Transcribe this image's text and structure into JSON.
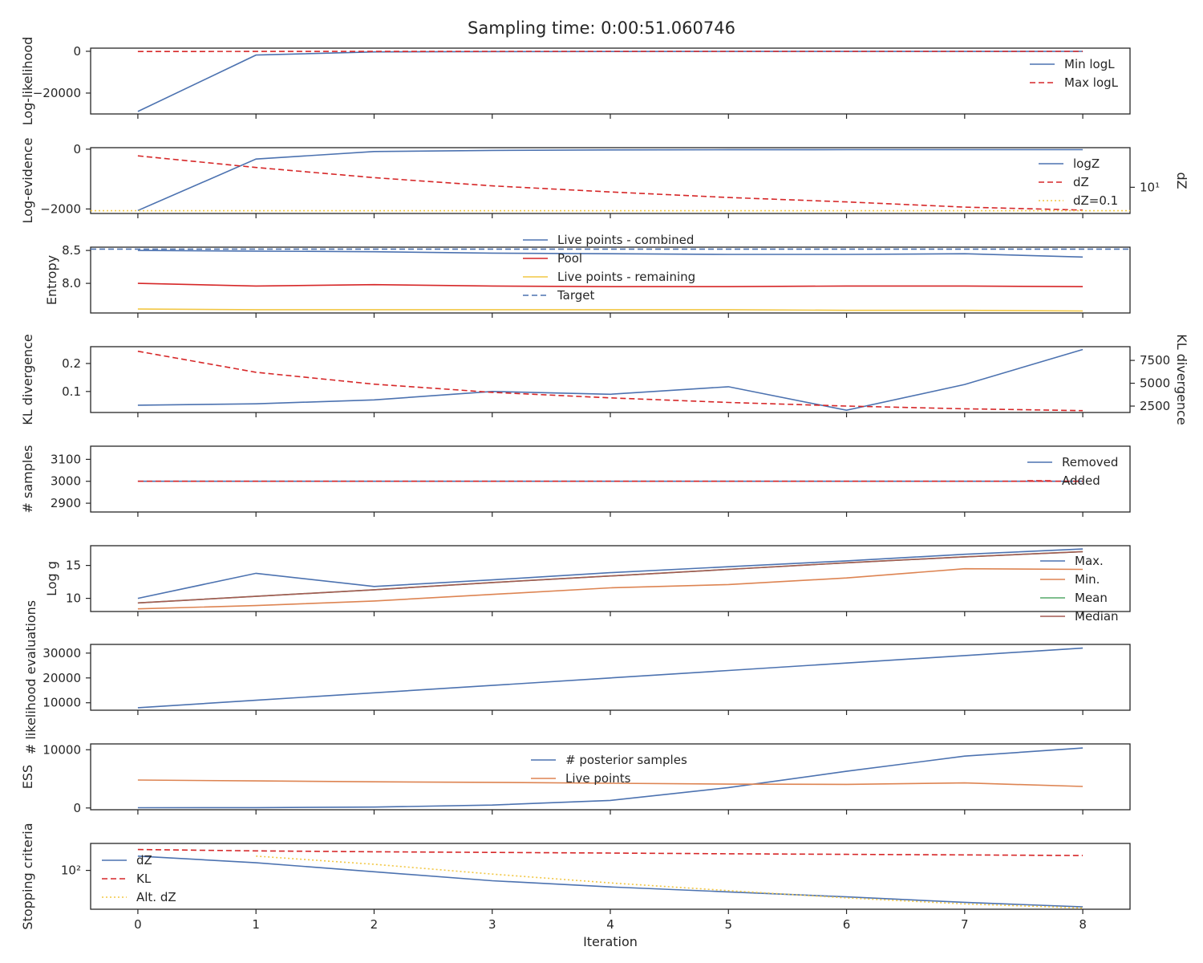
{
  "title": "Sampling time: 0:00:51.060746",
  "xlabel": "Iteration",
  "x": [
    0,
    1,
    2,
    3,
    4,
    5,
    6,
    7,
    8
  ],
  "x_ticks": [
    "0",
    "1",
    "2",
    "3",
    "4",
    "5",
    "6",
    "7",
    "8"
  ],
  "colors": {
    "blue": "#4c72b0",
    "orange": "#dd8452",
    "green": "#55a868",
    "red": "#d62728",
    "brown": "#a45a52",
    "yellow": "#f2c744"
  },
  "chart_data": [
    {
      "type": "line",
      "ylabel": "Log-likelihood",
      "ylim": [
        -30000,
        1500
      ],
      "yticks": [
        {
          "v": 0,
          "label": "0"
        },
        {
          "v": -20000,
          "label": "−20000"
        }
      ],
      "legend": "right",
      "series": [
        {
          "name": "Min logL",
          "color": "#4c72b0",
          "style": "solid",
          "values": [
            -28800,
            -1800,
            -300,
            -150,
            -100,
            -80,
            -70,
            -60,
            -50
          ]
        },
        {
          "name": "Max logL",
          "color": "#d62728",
          "style": "dashed",
          "values": [
            -100,
            -80,
            -60,
            -50,
            -45,
            -40,
            -35,
            -30,
            -30
          ]
        }
      ]
    },
    {
      "type": "line",
      "ylabel": "Log-evidence",
      "ylim": [
        -2150,
        50
      ],
      "yticks": [
        {
          "v": 0,
          "label": "0"
        },
        {
          "v": -2000,
          "label": "−2000"
        }
      ],
      "y2label": "dZ",
      "y2scale": "log",
      "y2ticks": [
        {
          "v": 10,
          "label": "10¹"
        }
      ],
      "legend": "right",
      "series": [
        {
          "name": "logZ",
          "color": "#4c72b0",
          "style": "solid",
          "axis": "left",
          "values": [
            -2050,
            -330,
            -80,
            -40,
            -25,
            -20,
            -18,
            -17,
            -17
          ]
        },
        {
          "name": "dZ",
          "color": "#d62728",
          "style": "dashed",
          "axis": "right",
          "values": [
            30,
            20,
            14,
            10.5,
            8.5,
            7,
            6,
            5,
            4.5
          ]
        },
        {
          "name": "dZ=0.1",
          "color": "#f2c744",
          "style": "dotted",
          "axis": "right",
          "hline": true,
          "values": [
            4.4
          ]
        }
      ]
    },
    {
      "type": "line",
      "ylabel": "Entropy",
      "ylim": [
        7.55,
        8.55
      ],
      "yticks": [
        {
          "v": 8.5,
          "label": "8.5"
        },
        {
          "v": 8.0,
          "label": "8.0"
        }
      ],
      "legend": "top-center",
      "series": [
        {
          "name": "Live points - combined",
          "color": "#4c72b0",
          "style": "solid",
          "values": [
            8.5,
            8.49,
            8.48,
            8.46,
            8.45,
            8.44,
            8.44,
            8.45,
            8.4
          ]
        },
        {
          "name": "Pool",
          "color": "#d62728",
          "style": "solid",
          "values": [
            8.0,
            7.96,
            7.98,
            7.96,
            7.95,
            7.95,
            7.96,
            7.96,
            7.95
          ]
        },
        {
          "name": "Live points - remaining",
          "color": "#f2c744",
          "style": "solid",
          "values": [
            7.61,
            7.6,
            7.6,
            7.6,
            7.6,
            7.6,
            7.59,
            7.59,
            7.58
          ]
        },
        {
          "name": "Target",
          "color": "#4c72b0",
          "style": "dashed",
          "hline": true,
          "values": [
            8.52
          ]
        }
      ]
    },
    {
      "type": "line",
      "ylabel": "KL divergence",
      "ylim": [
        0.025,
        0.26
      ],
      "yticks": [
        {
          "v": 0.2,
          "label": "0.2"
        },
        {
          "v": 0.1,
          "label": "0.1"
        }
      ],
      "y2label": "KL divergence",
      "y2lim": [
        1800,
        9000
      ],
      "y2ticks": [
        {
          "v": 7500,
          "label": "7500"
        },
        {
          "v": 5000,
          "label": "5000"
        },
        {
          "v": 2500,
          "label": "2500"
        }
      ],
      "series": [
        {
          "name": "",
          "color": "#4c72b0",
          "style": "solid",
          "axis": "left",
          "values": [
            0.051,
            0.056,
            0.07,
            0.1,
            0.09,
            0.117,
            0.033,
            0.125,
            0.25
          ]
        },
        {
          "name": "",
          "color": "#d62728",
          "style": "dashed",
          "axis": "right",
          "values": [
            8500,
            6200,
            4900,
            4000,
            3400,
            2900,
            2500,
            2200,
            2000
          ]
        }
      ]
    },
    {
      "type": "line",
      "ylabel": "# samples",
      "ylim": [
        2860,
        3160
      ],
      "yticks": [
        {
          "v": 3100,
          "label": "3100"
        },
        {
          "v": 3000,
          "label": "3000"
        },
        {
          "v": 2900,
          "label": "2900"
        }
      ],
      "legend": "right",
      "series": [
        {
          "name": "Removed",
          "color": "#4c72b0",
          "style": "solid",
          "values": [
            3000,
            3000,
            3000,
            3000,
            3000,
            3000,
            3000,
            3000,
            3000
          ]
        },
        {
          "name": "Added",
          "color": "#d62728",
          "style": "dashed",
          "values": [
            3000,
            3000,
            3000,
            3000,
            3000,
            3000,
            3000,
            3000,
            3000
          ]
        }
      ]
    },
    {
      "type": "line",
      "ylabel": "Log g",
      "ylim": [
        8,
        18
      ],
      "yticks": [
        {
          "v": 15,
          "label": "15"
        },
        {
          "v": 10,
          "label": "10"
        }
      ],
      "legend": "right",
      "series": [
        {
          "name": "Max.",
          "color": "#4c72b0",
          "style": "solid",
          "values": [
            10.0,
            13.8,
            11.8,
            12.8,
            13.9,
            14.8,
            15.7,
            16.7,
            17.5
          ]
        },
        {
          "name": "Min.",
          "color": "#dd8452",
          "style": "solid",
          "values": [
            8.4,
            8.9,
            9.6,
            10.6,
            11.6,
            12.1,
            13.1,
            14.5,
            14.4
          ]
        },
        {
          "name": "Mean",
          "color": "#55a868",
          "style": "solid",
          "values": [
            9.3,
            10.3,
            11.3,
            12.4,
            13.4,
            14.4,
            15.4,
            16.3,
            17.1
          ]
        },
        {
          "name": "Median",
          "color": "#a45a52",
          "style": "solid",
          "values": [
            9.3,
            10.3,
            11.3,
            12.4,
            13.4,
            14.4,
            15.4,
            16.3,
            17.1
          ]
        }
      ]
    },
    {
      "type": "line",
      "ylabel": "# likelihood evaluations",
      "ylim": [
        7000,
        33500
      ],
      "yticks": [
        {
          "v": 30000,
          "label": "30000"
        },
        {
          "v": 20000,
          "label": "20000"
        },
        {
          "v": 10000,
          "label": "10000"
        }
      ],
      "series": [
        {
          "name": "",
          "color": "#4c72b0",
          "style": "solid",
          "values": [
            8000,
            11000,
            14000,
            17000,
            20000,
            23000,
            26000,
            29000,
            32000
          ]
        }
      ]
    },
    {
      "type": "line",
      "ylabel": "ESS",
      "ylim": [
        -300,
        11000
      ],
      "yticks": [
        {
          "v": 10000,
          "label": "10000"
        },
        {
          "v": 0,
          "label": "0"
        }
      ],
      "legend": "top-center",
      "series": [
        {
          "name": "# posterior samples",
          "color": "#4c72b0",
          "style": "solid",
          "values": [
            50,
            60,
            150,
            500,
            1300,
            3500,
            6300,
            8900,
            10300
          ]
        },
        {
          "name": "Live points",
          "color": "#dd8452",
          "style": "solid",
          "values": [
            4800,
            4650,
            4500,
            4400,
            4250,
            4100,
            4050,
            4300,
            3700
          ]
        }
      ]
    },
    {
      "type": "line",
      "ylabel": "Stopping criteria",
      "yscale": "log",
      "ylim": [
        5,
        800
      ],
      "yticks": [
        {
          "v": 100,
          "label": "10²"
        }
      ],
      "legend": "top-left",
      "series": [
        {
          "name": "dZ",
          "color": "#4c72b0",
          "style": "solid",
          "values": [
            300,
            180,
            90,
            45,
            28,
            19,
            13,
            8.5,
            6
          ]
        },
        {
          "name": "KL",
          "color": "#d62728",
          "style": "dashed",
          "values": [
            500,
            450,
            420,
            400,
            380,
            360,
            345,
            330,
            315
          ]
        },
        {
          "name": "Alt. dZ",
          "color": "#f2c744",
          "style": "dotted",
          "values": [
            null,
            300,
            160,
            75,
            38,
            21,
            12,
            7.5,
            5.5
          ]
        }
      ]
    }
  ]
}
